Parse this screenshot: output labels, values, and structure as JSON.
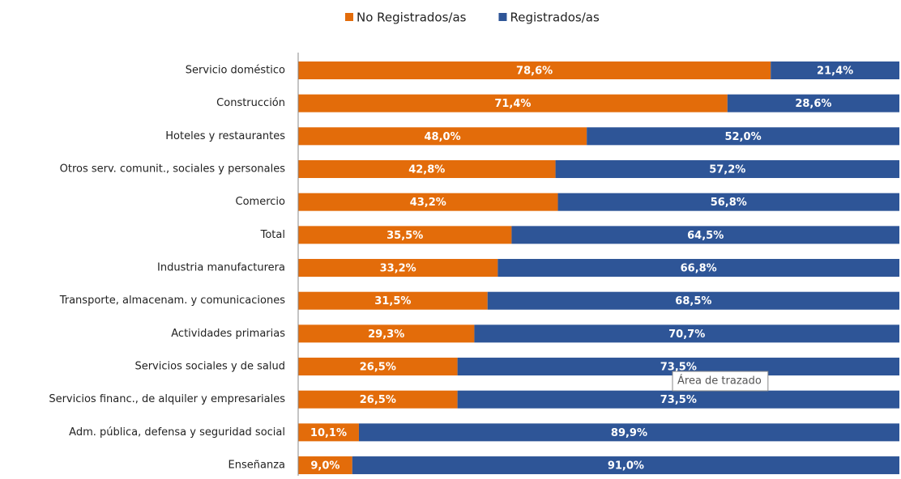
{
  "chart_data": {
    "type": "stacked-bar-horizontal",
    "categories": [
      "Servicio doméstico",
      "Construcción",
      "Hoteles y restaurantes",
      "Otros serv. comunit., sociales y personales",
      "Comercio",
      "Total",
      "Industria manufacturera",
      "Transporte, almacenam. y comunicaciones",
      "Actividades primarias",
      "Servicios sociales y de salud",
      "Servicios financ., de alquiler y empresariales",
      "Adm. pública, defensa y seguridad social",
      "Enseñanza"
    ],
    "series": [
      {
        "name": "No Registrados/as",
        "color": "#e36c0a",
        "values": [
          78.6,
          71.4,
          48.0,
          42.8,
          43.2,
          35.5,
          33.2,
          31.5,
          29.3,
          26.5,
          26.5,
          10.1,
          9.0
        ],
        "value_labels": [
          "78,6%",
          "71,4%",
          "48,0%",
          "42,8%",
          "43,2%",
          "35,5%",
          "33,2%",
          "31,5%",
          "29,3%",
          "26,5%",
          "26,5%",
          "10,1%",
          "9,0%"
        ]
      },
      {
        "name": "Registrados/as",
        "color": "#2e5597",
        "values": [
          21.4,
          28.6,
          52.0,
          57.2,
          56.8,
          64.5,
          66.8,
          68.5,
          70.7,
          73.5,
          73.5,
          89.9,
          91.0
        ],
        "value_labels": [
          "21,4%",
          "28,6%",
          "52,0%",
          "57,2%",
          "56,8%",
          "64,5%",
          "66,8%",
          "68,5%",
          "70,7%",
          "73,5%",
          "73,5%",
          "89,9%",
          "91,0%"
        ]
      }
    ],
    "xlim": [
      0,
      100
    ],
    "legend": "top"
  },
  "tooltip": "Área de trazado"
}
